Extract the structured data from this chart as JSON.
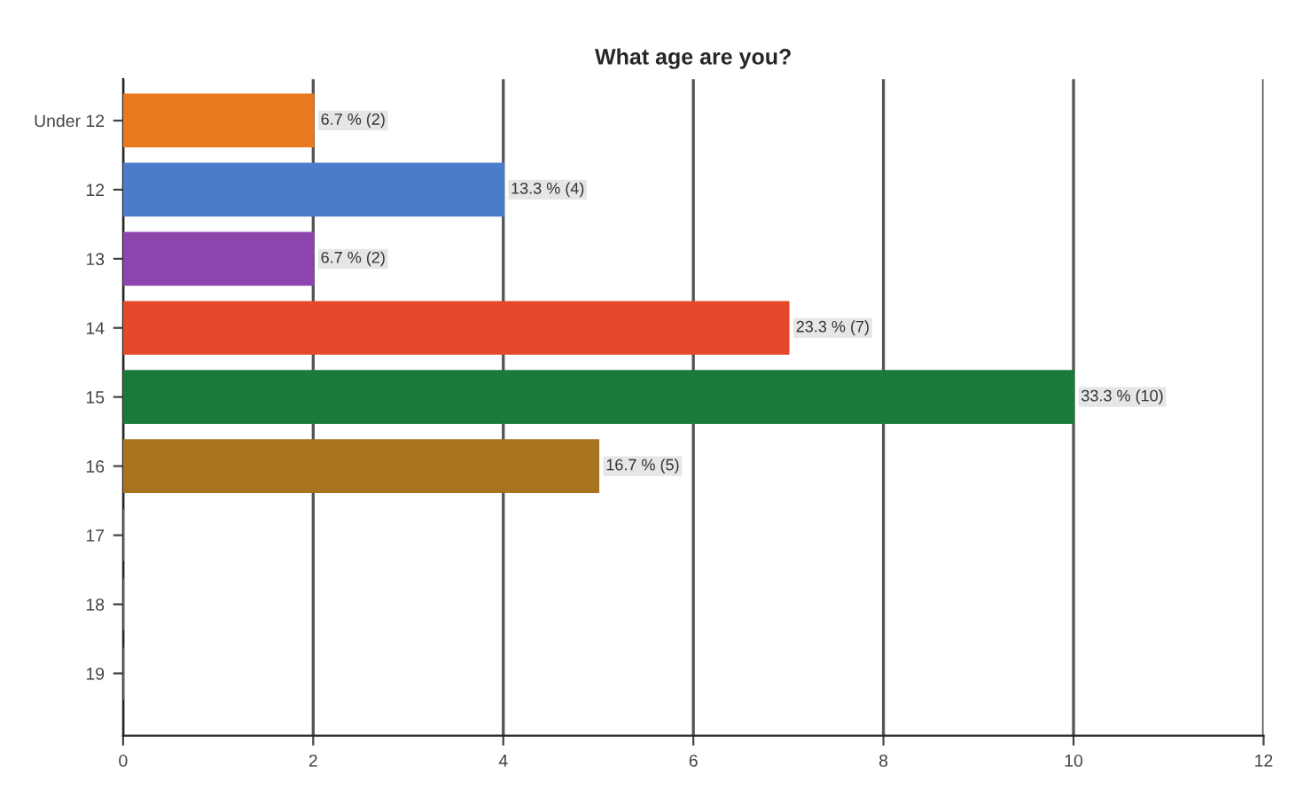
{
  "chart_data": {
    "type": "bar",
    "orientation": "horizontal",
    "title": "What age are you?",
    "categories": [
      "Under 12",
      "12",
      "13",
      "14",
      "15",
      "16",
      "17",
      "18",
      "19"
    ],
    "values": [
      2,
      4,
      2,
      7,
      10,
      5,
      0,
      0,
      0
    ],
    "colors": [
      "#e8791e",
      "#4a7cc9",
      "#8e44ad",
      "#e5482b",
      "#1a7a3a",
      "#a8731f",
      "#a8731f",
      "#a8731f",
      "#a8731f"
    ],
    "value_labels": [
      "6.7 % (2)",
      "13.3 % (4)",
      "6.7 % (2)",
      "23.3 % (7)",
      "33.3 % (10)",
      "16.7 % (5)",
      null,
      null,
      null
    ],
    "xlim": [
      0,
      12
    ],
    "xticks": [
      0,
      2,
      4,
      6,
      8,
      10,
      12
    ],
    "grid": "x",
    "legend": false
  }
}
